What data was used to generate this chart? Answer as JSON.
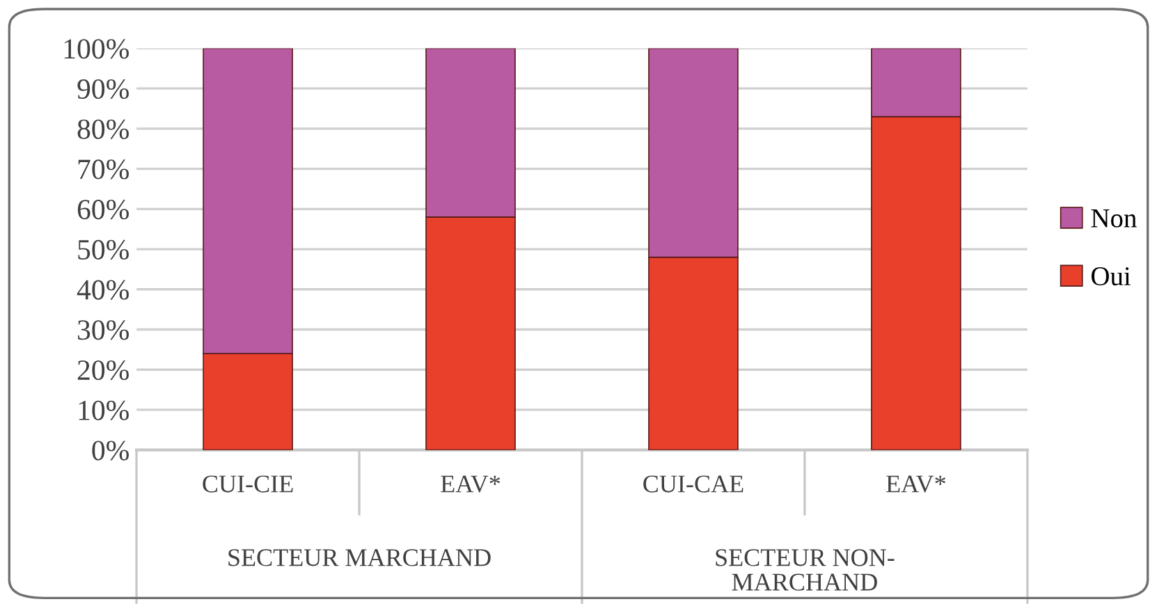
{
  "chart_data": {
    "type": "bar",
    "stacked": true,
    "categories": [
      "CUI-CIE",
      "EAV*",
      "CUI-CAE",
      "EAV*"
    ],
    "series": [
      {
        "name": "Oui",
        "color": "#e8402a",
        "values": [
          24,
          58,
          48,
          83
        ]
      },
      {
        "name": "Non",
        "color": "#b85ba3",
        "values": [
          76,
          42,
          52,
          17
        ]
      }
    ],
    "annotations": [
      "SECTEUR MARCHAND",
      "SECTEUR NON-\nMARCHAND"
    ],
    "ylim": [
      0,
      100
    ],
    "yticks": [
      {
        "value": 0,
        "label": "0%"
      },
      {
        "value": 10,
        "label": "10%"
      },
      {
        "value": 20,
        "label": "20%"
      },
      {
        "value": 30,
        "label": "30%"
      },
      {
        "value": 40,
        "label": "40%"
      },
      {
        "value": 50,
        "label": "50%"
      },
      {
        "value": 60,
        "label": "60%"
      },
      {
        "value": 70,
        "label": "70%"
      },
      {
        "value": 80,
        "label": "80%"
      },
      {
        "value": 90,
        "label": "90%"
      },
      {
        "value": 100,
        "label": "100%"
      }
    ],
    "grid": "y",
    "legend": "right"
  }
}
